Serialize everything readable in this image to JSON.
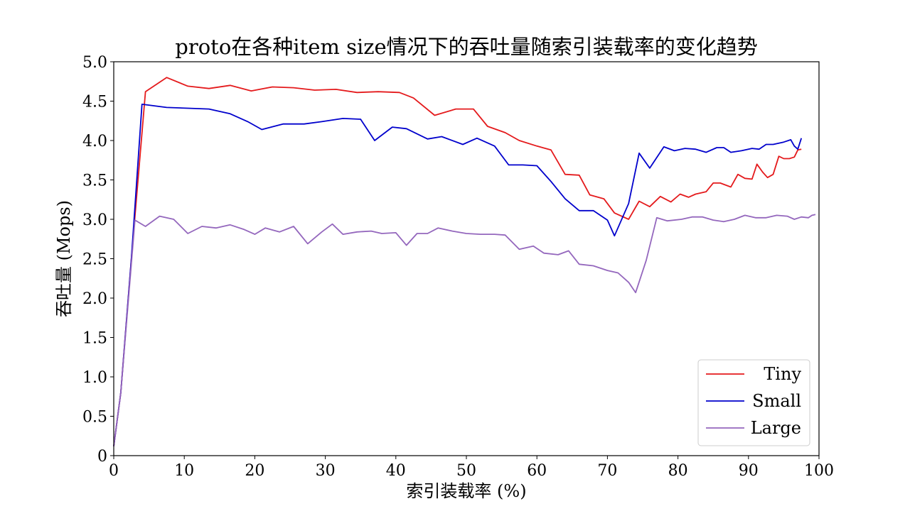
{
  "chart_data": {
    "type": "line",
    "title": "proto在各种item size情况下的吞吐量随索引装载率的变化趋势",
    "xlabel": "索引装载率 (%)",
    "ylabel": "吞吐量 (Mops)",
    "xlim": [
      0,
      100
    ],
    "ylim": [
      0,
      5.0
    ],
    "xticks": [
      0,
      10,
      20,
      30,
      40,
      50,
      60,
      70,
      80,
      90,
      100
    ],
    "xtick_labels": [
      "0",
      "10",
      "20",
      "30",
      "40",
      "50",
      "60",
      "70",
      "80",
      "90",
      "100"
    ],
    "yticks": [
      0,
      0.5,
      1.0,
      1.5,
      2.0,
      2.5,
      3.0,
      3.5,
      4.0,
      4.5,
      5.0
    ],
    "ytick_labels": [
      "0",
      "0.5",
      "1.0",
      "1.5",
      "2.0",
      "2.5",
      "3.0",
      "3.5",
      "4.0",
      "4.5",
      "5.0"
    ],
    "grid": false,
    "legend_position": "bottom-right",
    "series": [
      {
        "name": "Tiny",
        "color": "#e41a1c",
        "points": [
          [
            0,
            0.12
          ],
          [
            1,
            0.8
          ],
          [
            2.5,
            2.5
          ],
          [
            4.5,
            4.62
          ],
          [
            7.5,
            4.8
          ],
          [
            10.5,
            4.69
          ],
          [
            13.5,
            4.66
          ],
          [
            16.5,
            4.7
          ],
          [
            19.5,
            4.63
          ],
          [
            22.5,
            4.68
          ],
          [
            25.5,
            4.67
          ],
          [
            28.5,
            4.64
          ],
          [
            31.5,
            4.65
          ],
          [
            34.5,
            4.61
          ],
          [
            37.5,
            4.62
          ],
          [
            40.5,
            4.61
          ],
          [
            42.5,
            4.54
          ],
          [
            45.5,
            4.32
          ],
          [
            48.5,
            4.4
          ],
          [
            51,
            4.4
          ],
          [
            53,
            4.18
          ],
          [
            55.5,
            4.1
          ],
          [
            57.5,
            4.0
          ],
          [
            60,
            3.93
          ],
          [
            62,
            3.88
          ],
          [
            64,
            3.57
          ],
          [
            66,
            3.56
          ],
          [
            67.5,
            3.31
          ],
          [
            69.5,
            3.26
          ],
          [
            71,
            3.08
          ],
          [
            73,
            3.0
          ],
          [
            74.5,
            3.23
          ],
          [
            76,
            3.16
          ],
          [
            77.5,
            3.29
          ],
          [
            79,
            3.22
          ],
          [
            80.3,
            3.32
          ],
          [
            81.5,
            3.28
          ],
          [
            82.5,
            3.32
          ],
          [
            84,
            3.35
          ],
          [
            85,
            3.46
          ],
          [
            86,
            3.46
          ],
          [
            87.5,
            3.41
          ],
          [
            88.5,
            3.57
          ],
          [
            89.5,
            3.52
          ],
          [
            90.5,
            3.51
          ],
          [
            91.2,
            3.7
          ],
          [
            92,
            3.6
          ],
          [
            92.7,
            3.53
          ],
          [
            93.5,
            3.57
          ],
          [
            94.3,
            3.8
          ],
          [
            95,
            3.77
          ],
          [
            95.8,
            3.77
          ],
          [
            96.5,
            3.79
          ],
          [
            97,
            3.88
          ],
          [
            97.5,
            3.89
          ]
        ]
      },
      {
        "name": "Small",
        "color": "#0000cc",
        "points": [
          [
            0,
            0.12
          ],
          [
            1,
            0.8
          ],
          [
            2.5,
            2.5
          ],
          [
            4,
            4.46
          ],
          [
            7.5,
            4.42
          ],
          [
            10.5,
            4.41
          ],
          [
            13.5,
            4.4
          ],
          [
            16.5,
            4.34
          ],
          [
            19,
            4.24
          ],
          [
            21,
            4.14
          ],
          [
            24,
            4.21
          ],
          [
            27,
            4.21
          ],
          [
            29.5,
            4.24
          ],
          [
            32.5,
            4.28
          ],
          [
            35,
            4.27
          ],
          [
            37,
            4.0
          ],
          [
            39.5,
            4.17
          ],
          [
            41.5,
            4.15
          ],
          [
            44.5,
            4.02
          ],
          [
            46.5,
            4.05
          ],
          [
            49.5,
            3.95
          ],
          [
            51.5,
            4.03
          ],
          [
            54,
            3.93
          ],
          [
            56,
            3.69
          ],
          [
            58,
            3.69
          ],
          [
            60,
            3.68
          ],
          [
            62,
            3.48
          ],
          [
            64,
            3.26
          ],
          [
            66,
            3.11
          ],
          [
            68,
            3.11
          ],
          [
            70,
            2.99
          ],
          [
            71,
            2.79
          ],
          [
            73,
            3.2
          ],
          [
            74.5,
            3.84
          ],
          [
            76,
            3.65
          ],
          [
            78,
            3.92
          ],
          [
            79.5,
            3.87
          ],
          [
            81,
            3.9
          ],
          [
            82.5,
            3.89
          ],
          [
            84,
            3.85
          ],
          [
            85.5,
            3.91
          ],
          [
            86.5,
            3.91
          ],
          [
            87.5,
            3.85
          ],
          [
            89,
            3.87
          ],
          [
            90.5,
            3.9
          ],
          [
            91.5,
            3.89
          ],
          [
            92.5,
            3.95
          ],
          [
            93.5,
            3.95
          ],
          [
            95,
            3.98
          ],
          [
            96,
            4.01
          ],
          [
            96.5,
            3.93
          ],
          [
            97,
            3.89
          ],
          [
            97.5,
            4.03
          ]
        ]
      },
      {
        "name": "Large",
        "color": "#9467bd",
        "points": [
          [
            0,
            0.12
          ],
          [
            1,
            0.8
          ],
          [
            3,
            2.99
          ],
          [
            4.5,
            2.91
          ],
          [
            6.5,
            3.04
          ],
          [
            8.5,
            3.0
          ],
          [
            10.5,
            2.82
          ],
          [
            12.5,
            2.91
          ],
          [
            14.5,
            2.89
          ],
          [
            16.5,
            2.93
          ],
          [
            18.5,
            2.87
          ],
          [
            20,
            2.81
          ],
          [
            21.5,
            2.89
          ],
          [
            23.5,
            2.84
          ],
          [
            25.5,
            2.91
          ],
          [
            27.5,
            2.69
          ],
          [
            29.5,
            2.84
          ],
          [
            31,
            2.94
          ],
          [
            32.5,
            2.81
          ],
          [
            34.5,
            2.84
          ],
          [
            36.5,
            2.85
          ],
          [
            38,
            2.82
          ],
          [
            40,
            2.83
          ],
          [
            41.5,
            2.67
          ],
          [
            43,
            2.82
          ],
          [
            44.5,
            2.82
          ],
          [
            46,
            2.89
          ],
          [
            48,
            2.85
          ],
          [
            50,
            2.82
          ],
          [
            52,
            2.81
          ],
          [
            54,
            2.81
          ],
          [
            55.5,
            2.8
          ],
          [
            57.5,
            2.62
          ],
          [
            59.5,
            2.66
          ],
          [
            61,
            2.57
          ],
          [
            63,
            2.55
          ],
          [
            64.5,
            2.6
          ],
          [
            66,
            2.43
          ],
          [
            68,
            2.41
          ],
          [
            70,
            2.35
          ],
          [
            71.5,
            2.32
          ],
          [
            73,
            2.2
          ],
          [
            74,
            2.07
          ],
          [
            75.5,
            2.48
          ],
          [
            77,
            3.02
          ],
          [
            78.5,
            2.98
          ],
          [
            80.5,
            3.0
          ],
          [
            82,
            3.03
          ],
          [
            83.5,
            3.03
          ],
          [
            85,
            2.99
          ],
          [
            86.5,
            2.97
          ],
          [
            88,
            3.0
          ],
          [
            89.5,
            3.05
          ],
          [
            91,
            3.02
          ],
          [
            92.5,
            3.02
          ],
          [
            94,
            3.05
          ],
          [
            95.5,
            3.04
          ],
          [
            96.5,
            3.0
          ],
          [
            97.5,
            3.03
          ],
          [
            98.5,
            3.02
          ],
          [
            99,
            3.05
          ],
          [
            99.5,
            3.06
          ]
        ]
      }
    ]
  }
}
